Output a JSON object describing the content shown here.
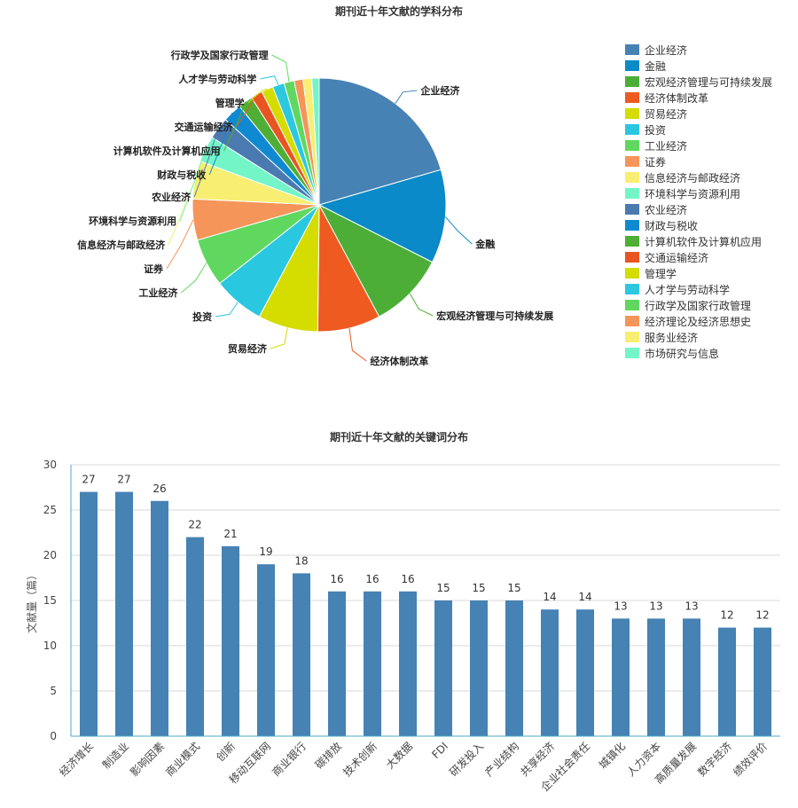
{
  "chart_data": [
    {
      "type": "pie",
      "title": "期刊近十年文献的学科分布",
      "legend_position": "right",
      "categories": [
        "企业经济",
        "金融",
        "宏观经济管理与可持续发展",
        "经济体制改革",
        "贸易经济",
        "投资",
        "工业经济",
        "证券",
        "信息经济与邮政经济",
        "环境科学与资源利用",
        "农业经济",
        "财政与税收",
        "计算机软件及计算机应用",
        "交通运输经济",
        "管理学",
        "人才学与劳动科学",
        "行政学及国家行政管理",
        "经济理论及经济思想史",
        "服务业经济",
        "市场研究与信息"
      ],
      "values": [
        110,
        64,
        52,
        43,
        41,
        35,
        33,
        28,
        26,
        18,
        15,
        13,
        10,
        8,
        8,
        8,
        7,
        6,
        6,
        5
      ],
      "colors": [
        "#4682b4",
        "#0a8ac8",
        "#4cae36",
        "#ee5a20",
        "#d4dc00",
        "#2ac7e0",
        "#60d860",
        "#f5955a",
        "#f8ee72",
        "#74f5c8",
        "#4a7ab0",
        "#0f8ad0",
        "#4fae35",
        "#e85520",
        "#d4dc00",
        "#2cc8e0",
        "#60d860",
        "#f5955a",
        "#f8ee72",
        "#74f5c8"
      ],
      "outside_labels": [
        "企业经济",
        "金融",
        "宏观经济管理与可持续发展",
        "经济体制改革",
        "贸易经济",
        "投资",
        "工业经济",
        "证券",
        "信息经济与邮政经济",
        "环境科学与资源利用",
        "农业经济",
        "财政与税收",
        "计算机软件及计算机应用",
        "交通运输经济",
        "管理学",
        "人才学与劳动科学",
        "行政学及国家行政管理"
      ]
    },
    {
      "type": "bar",
      "title": "期刊近十年文献的关键词分布",
      "ylabel": "文献量（篇）",
      "ylim": [
        0,
        30
      ],
      "yticks": [
        0,
        5,
        10,
        15,
        20,
        25,
        30
      ],
      "grid": true,
      "categories": [
        "经济增长",
        "制造业",
        "影响因素",
        "商业模式",
        "创新",
        "移动互联网",
        "商业银行",
        "碳排放",
        "技术创新",
        "大数据",
        "FDI",
        "研发投入",
        "产业结构",
        "共享经济",
        "企业社会责任",
        "城镇化",
        "人力资本",
        "高质量发展",
        "数字经济",
        "绩效评价"
      ],
      "values": [
        27,
        27,
        26,
        22,
        21,
        19,
        18,
        16,
        16,
        16,
        15,
        15,
        15,
        14,
        14,
        13,
        13,
        13,
        12,
        12
      ],
      "color": "#4682b4"
    }
  ]
}
